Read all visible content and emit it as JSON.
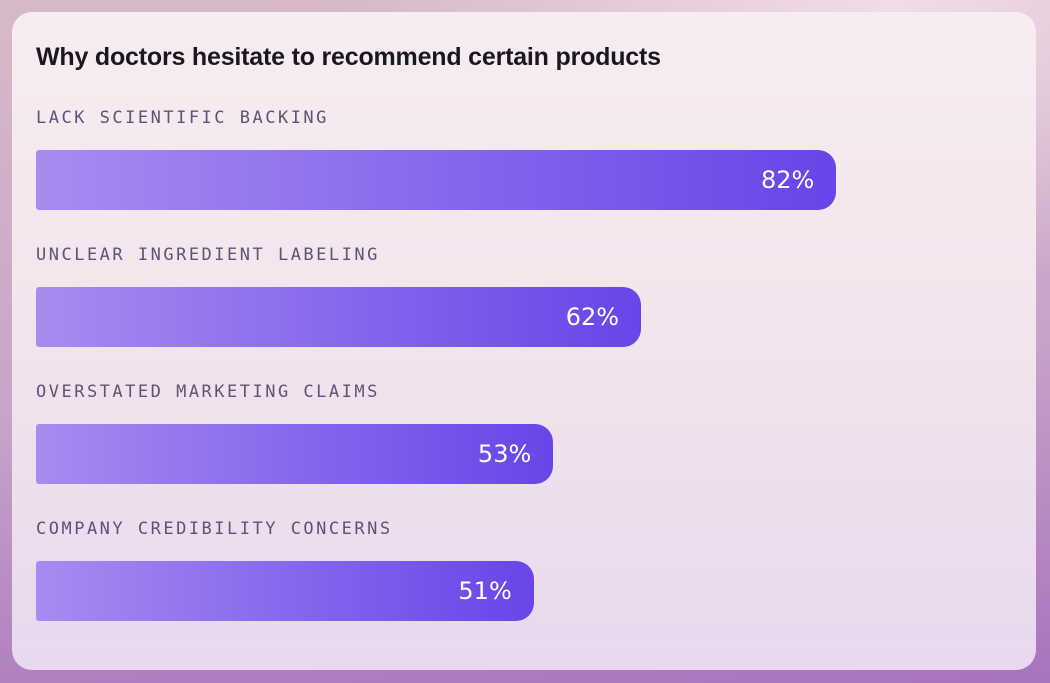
{
  "chart_data": {
    "type": "bar",
    "orientation": "horizontal",
    "title": "Why doctors hesitate to recommend certain products",
    "categories": [
      "LACK SCIENTIFIC BACKING",
      "UNCLEAR INGREDIENT LABELING",
      "OVERSTATED MARKETING CLAIMS",
      "COMPANY CREDIBILITY CONCERNS"
    ],
    "values": [
      82,
      62,
      53,
      51
    ],
    "value_labels": [
      "82%",
      "62%",
      "53%",
      "51%"
    ],
    "xlim": [
      0,
      100
    ],
    "grid": false,
    "legend": false,
    "value_label_position": "inside-end"
  },
  "colors": {
    "bar_gradient_start": "#a88bf0",
    "bar_gradient_end": "#6745e9",
    "label_text": "#5e5278",
    "title_text": "#1b1722",
    "value_text": "#ffffff",
    "card_background_top": "#f7edf1",
    "card_background_bottom": "#e9d8ef",
    "page_background_top": "#d7bac8",
    "page_background_bottom": "#a873bd"
  }
}
